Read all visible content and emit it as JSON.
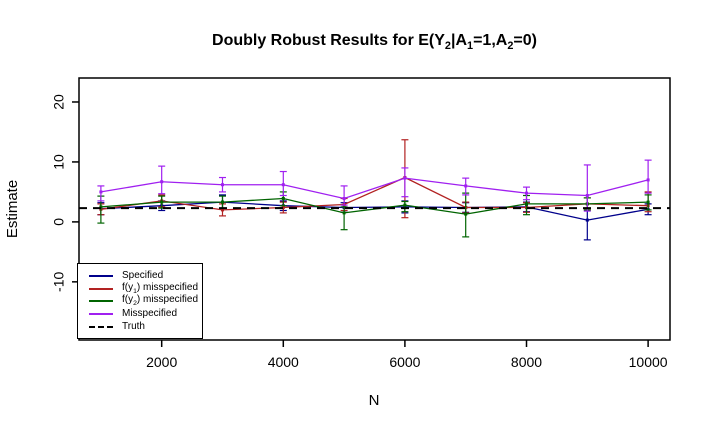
{
  "title": {
    "segments": [
      {
        "text": "Doubly Robust Results for E(Y",
        "sub": false
      },
      {
        "text": "2",
        "sub": true
      },
      {
        "text": "|A",
        "sub": false
      },
      {
        "text": "1",
        "sub": true
      },
      {
        "text": "=1,A",
        "sub": false
      },
      {
        "text": "2",
        "sub": true
      },
      {
        "text": "=0)",
        "sub": false
      }
    ],
    "plain": "Doubly Robust Results for E(Y2|A1=1,A2=0)"
  },
  "chart_data": {
    "type": "line",
    "xlabel": "N",
    "ylabel": "Estimate",
    "x": [
      1000,
      2000,
      3000,
      4000,
      5000,
      6000,
      7000,
      8000,
      9000,
      10000
    ],
    "xticks": [
      2000,
      4000,
      6000,
      8000,
      10000
    ],
    "yticks": [
      -10,
      0,
      10,
      20
    ],
    "xlim": [
      640,
      10360
    ],
    "ylim": [
      -19.7,
      24.0
    ],
    "grid": false,
    "legend_position": "bottom-left",
    "axis_color": "#000000",
    "background": "#ffffff",
    "series": [
      {
        "name": "Specified",
        "label_segments": [
          {
            "text": "Specified",
            "sub": false
          }
        ],
        "color": "#00008B",
        "style": "solid",
        "values": [
          2.2,
          2.7,
          3.3,
          2.7,
          2.4,
          2.5,
          2.4,
          2.5,
          0.3,
          2.1
        ],
        "lower": [
          1.2,
          1.9,
          2.3,
          1.9,
          1.6,
          1.5,
          1.6,
          1.7,
          -3.0,
          1.2
        ],
        "upper": [
          3.2,
          3.5,
          4.5,
          3.5,
          3.2,
          3.5,
          3.2,
          3.3,
          2.3,
          3.0
        ]
      },
      {
        "name": "f(y1) misspecified",
        "label_segments": [
          {
            "text": "f(y",
            "sub": false
          },
          {
            "text": "1",
            "sub": true
          },
          {
            "text": ") misspecified",
            "sub": false
          }
        ],
        "color": "#B22222",
        "style": "solid",
        "values": [
          2.1,
          3.5,
          2.0,
          2.4,
          2.9,
          7.4,
          2.4,
          2.4,
          3.0,
          2.7
        ],
        "lower": [
          1.2,
          2.5,
          1.0,
          1.5,
          1.9,
          0.7,
          1.5,
          1.6,
          2.0,
          1.7
        ],
        "upper": [
          3.0,
          4.5,
          3.0,
          3.3,
          3.9,
          13.7,
          3.3,
          3.2,
          4.0,
          5.0
        ]
      },
      {
        "name": "f(y2) misspecified",
        "label_segments": [
          {
            "text": "f(y",
            "sub": false
          },
          {
            "text": "2",
            "sub": true
          },
          {
            "text": ") misspecified",
            "sub": false
          }
        ],
        "color": "#006400",
        "style": "solid",
        "values": [
          2.5,
          3.3,
          3.3,
          3.9,
          1.5,
          2.8,
          1.3,
          3.0,
          3.0,
          3.3
        ],
        "lower": [
          -0.2,
          2.3,
          2.3,
          2.7,
          -1.3,
          1.7,
          -2.5,
          1.2,
          2.0,
          2.0
        ],
        "upper": [
          4.3,
          4.3,
          4.3,
          5.0,
          2.5,
          3.4,
          4.8,
          4.4,
          4.0,
          4.5
        ]
      },
      {
        "name": "Misspecified",
        "label_segments": [
          {
            "text": "Misspecified",
            "sub": false
          }
        ],
        "color": "#A020F0",
        "style": "solid",
        "values": [
          5.0,
          6.7,
          6.2,
          6.2,
          3.9,
          7.3,
          6.0,
          4.8,
          4.4,
          7.0
        ],
        "lower": [
          3.5,
          4.7,
          5.0,
          4.4,
          2.8,
          4.2,
          4.5,
          3.7,
          1.8,
          4.8
        ],
        "upper": [
          6.0,
          9.3,
          7.4,
          8.4,
          6.0,
          9.0,
          7.3,
          5.8,
          9.5,
          10.3
        ]
      },
      {
        "name": "Truth",
        "label_segments": [
          {
            "text": "Truth",
            "sub": false
          }
        ],
        "color": "#000000",
        "style": "dashed",
        "constant": 2.3
      }
    ]
  }
}
